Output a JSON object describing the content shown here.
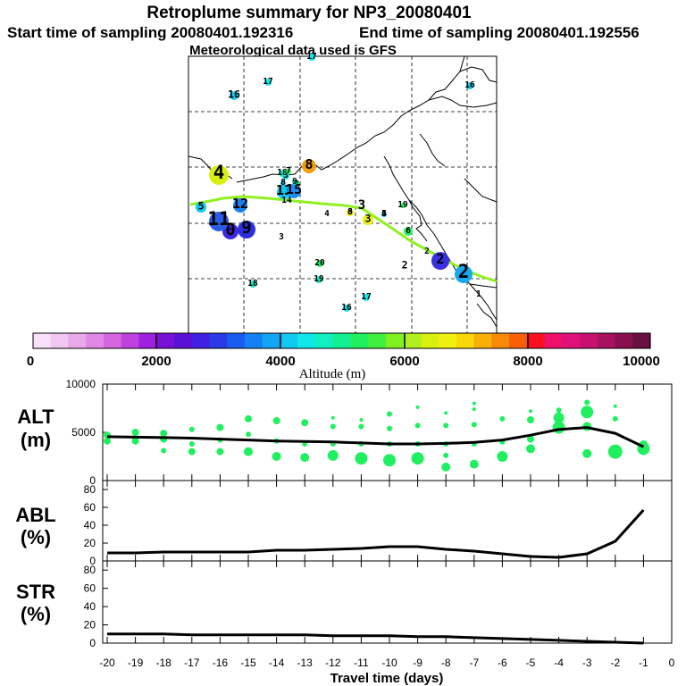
{
  "header": {
    "title": "Retroplume summary for NP3_20080401",
    "start_label": "Start time of sampling 20080401.192316",
    "end_label": "End time of sampling 20080401.192556",
    "met_label": "Meteorological data used is GFS"
  },
  "colorbar": {
    "ticks": [
      "0",
      "2000",
      "4000",
      "6000",
      "8000",
      "10000"
    ],
    "label": "Altitude (m)",
    "colors": [
      "#f9e1f9",
      "#f1c6f1",
      "#e9a9e9",
      "#e187e6",
      "#d566e0",
      "#c040e0",
      "#a020e0",
      "#7a10d8",
      "#5b10d8",
      "#3f20e0",
      "#2a3ae8",
      "#1a5cf0",
      "#1580f5",
      "#12a5f5",
      "#10c8f0",
      "#10e8e8",
      "#10f0c0",
      "#10f090",
      "#20f060",
      "#40f040",
      "#80f020",
      "#b0f020",
      "#d8f010",
      "#f0f010",
      "#f8d808",
      "#f8b008",
      "#f88a08",
      "#f86008",
      "#f81020",
      "#f0106a",
      "#e0107a",
      "#c81070",
      "#a81060",
      "#881050",
      "#681040"
    ]
  },
  "map": {
    "plumes": [
      {
        "label": "1",
        "color": "#b0f020"
      },
      {
        "label": "2",
        "color": "#18a8f0"
      },
      {
        "label": "2",
        "color": "#3a30e0"
      },
      {
        "label": "2",
        "color": "#d8f010"
      },
      {
        "label": "2",
        "color": "#f0f010"
      },
      {
        "label": "3",
        "color": "#f0f010"
      },
      {
        "label": "3",
        "color": "#d8f010"
      },
      {
        "label": "3",
        "color": "#10e8e8"
      },
      {
        "label": "4",
        "color": "#20f060"
      },
      {
        "label": "5",
        "color": "#10d0f0"
      },
      {
        "label": "6",
        "color": "#20f060"
      },
      {
        "label": "7",
        "color": "#40f040"
      },
      {
        "label": "8",
        "color": "#f0a010"
      },
      {
        "label": "9",
        "color": "#2a30e0"
      },
      {
        "label": "0",
        "color": "#4028e0"
      },
      {
        "label": "11",
        "color": "#2a5ce8"
      },
      {
        "label": "12",
        "color": "#1a80f0"
      },
      {
        "label": "13",
        "color": "#10c8f0"
      },
      {
        "label": "14",
        "color": "#20f060"
      },
      {
        "label": "15",
        "color": "#1a90f0"
      },
      {
        "label": "16",
        "color": "#10d0f0"
      },
      {
        "label": "17",
        "color": "#10e8e8"
      },
      {
        "label": "18",
        "color": "#10e8c0"
      },
      {
        "label": "19",
        "color": "#10e8c0"
      },
      {
        "label": "20",
        "color": "#20f060"
      },
      {
        "label": "4",
        "color": "#d8f010"
      },
      {
        "label": "5",
        "color": "#10c8f0"
      },
      {
        "label": "3",
        "color": "#f0f010"
      },
      {
        "label": "16",
        "color": "#10e0e8"
      },
      {
        "label": "16",
        "color": "#10c8f0"
      },
      {
        "label": "17",
        "color": "#10e8e8"
      },
      {
        "label": "17",
        "color": "#10e8e8"
      },
      {
        "label": "18",
        "color": "#10e8c0"
      },
      {
        "label": "19",
        "color": "#20f060"
      },
      {
        "label": "4",
        "color": "#10e8e8"
      },
      {
        "label": "6",
        "color": "#10d0f0"
      },
      {
        "label": "8",
        "color": "#10c8f0"
      },
      {
        "label": "9",
        "color": "#10e8c0"
      },
      {
        "label": "7",
        "color": "#20f060"
      }
    ],
    "path_labels": [
      "3"
    ]
  },
  "chart_data": [
    {
      "type": "scatter",
      "panel": "ALT",
      "ylabel": "ALT (m)",
      "ylim": [
        0,
        10000
      ],
      "yticks": [
        "10000",
        "5000",
        "0"
      ],
      "marker_color": "#20f060",
      "line": {
        "name": "mean altitude",
        "x": [
          -20,
          -19,
          -18,
          -17,
          -16,
          -15,
          -14,
          -13,
          -12,
          -11,
          -10,
          -9,
          -8,
          -7,
          -6,
          -5,
          -4,
          -3,
          -2,
          -1
        ],
        "y": [
          4550,
          4500,
          4450,
          4400,
          4300,
          4200,
          4100,
          4050,
          4000,
          3900,
          3800,
          3800,
          3850,
          3950,
          4200,
          4700,
          5300,
          5500,
          4900,
          3500
        ]
      },
      "points": [
        [
          -20,
          4100,
          4
        ],
        [
          -20,
          4700,
          4
        ],
        [
          -19,
          4100,
          4
        ],
        [
          -19,
          5000,
          4
        ],
        [
          -18,
          3100,
          3
        ],
        [
          -18,
          4300,
          4
        ],
        [
          -18,
          4900,
          4
        ],
        [
          -17,
          3000,
          4
        ],
        [
          -17,
          3800,
          3
        ],
        [
          -17,
          5300,
          3
        ],
        [
          -16,
          3000,
          4
        ],
        [
          -16,
          4200,
          3
        ],
        [
          -16,
          5500,
          4
        ],
        [
          -15,
          3000,
          5
        ],
        [
          -15,
          4800,
          3
        ],
        [
          -15,
          6400,
          4
        ],
        [
          -14,
          2500,
          5
        ],
        [
          -14,
          4100,
          3
        ],
        [
          -14,
          6200,
          4
        ],
        [
          -13,
          2400,
          5
        ],
        [
          -13,
          3800,
          3
        ],
        [
          -13,
          6000,
          4
        ],
        [
          -12,
          2600,
          6
        ],
        [
          -12,
          3800,
          3
        ],
        [
          -12,
          5600,
          3
        ],
        [
          -12,
          6500,
          2
        ],
        [
          -11,
          2300,
          7
        ],
        [
          -11,
          3800,
          3
        ],
        [
          -11,
          5600,
          3
        ],
        [
          -11,
          6300,
          2
        ],
        [
          -10,
          2100,
          7
        ],
        [
          -10,
          3800,
          3
        ],
        [
          -10,
          5400,
          3
        ],
        [
          -10,
          6900,
          3
        ],
        [
          -9,
          2300,
          7
        ],
        [
          -9,
          3800,
          3
        ],
        [
          -9,
          5700,
          3
        ],
        [
          -9,
          7600,
          2
        ],
        [
          -8,
          1400,
          5
        ],
        [
          -8,
          2600,
          3
        ],
        [
          -8,
          3800,
          3
        ],
        [
          -8,
          5700,
          3
        ],
        [
          -8,
          7000,
          2
        ],
        [
          -7,
          1700,
          5
        ],
        [
          -7,
          3800,
          3
        ],
        [
          -7,
          5800,
          3
        ],
        [
          -7,
          7400,
          2
        ],
        [
          -7,
          8000,
          2
        ],
        [
          -6,
          2500,
          6
        ],
        [
          -6,
          4000,
          3
        ],
        [
          -6,
          6400,
          3
        ],
        [
          -5,
          3300,
          5
        ],
        [
          -5,
          4300,
          4
        ],
        [
          -5,
          6300,
          4
        ],
        [
          -5,
          7200,
          2
        ],
        [
          -4,
          5500,
          7
        ],
        [
          -4,
          6500,
          6
        ],
        [
          -4,
          7300,
          3
        ],
        [
          -3,
          2800,
          5
        ],
        [
          -3,
          5600,
          5
        ],
        [
          -3,
          7100,
          7
        ],
        [
          -3,
          8100,
          3
        ],
        [
          -2,
          3000,
          8
        ],
        [
          -2,
          6400,
          3
        ],
        [
          -2,
          7700,
          2
        ],
        [
          -1,
          3300,
          7
        ],
        [
          -1,
          3700,
          5
        ]
      ]
    },
    {
      "type": "line",
      "panel": "ABL",
      "ylabel": "ABL (%)",
      "ylim": [
        0,
        90
      ],
      "yticks": [
        "80",
        "60",
        "40",
        "20",
        "0"
      ],
      "x": [
        -20,
        -19,
        -18,
        -17,
        -16,
        -15,
        -14,
        -13,
        -12,
        -11,
        -10,
        -9,
        -8,
        -7,
        -6,
        -5,
        -4,
        -3,
        -2,
        -1
      ],
      "y": [
        9,
        9,
        10,
        10,
        10,
        10,
        12,
        12,
        13,
        14,
        16,
        16,
        13,
        11,
        8,
        5,
        4,
        8,
        22,
        57
      ]
    },
    {
      "type": "line",
      "panel": "STR",
      "ylabel": "STR (%)",
      "ylim": [
        0,
        90
      ],
      "yticks": [
        "80",
        "60",
        "40",
        "20",
        "0"
      ],
      "x": [
        -20,
        -19,
        -18,
        -17,
        -16,
        -15,
        -14,
        -13,
        -12,
        -11,
        -10,
        -9,
        -8,
        -7,
        -6,
        -5,
        -4,
        -3,
        -2,
        -1
      ],
      "y": [
        10,
        10,
        10,
        9,
        9,
        9,
        9,
        9,
        8,
        8,
        8,
        7,
        7,
        6,
        5,
        4,
        3,
        2,
        1,
        0
      ],
      "xlabel": "Travel time (days)",
      "xticks": [
        "-20",
        "-19",
        "-18",
        "-17",
        "-16",
        "-15",
        "-14",
        "-13",
        "-12",
        "-11",
        "-10",
        "-9",
        "-8",
        "-7",
        "-6",
        "-5",
        "-4",
        "-3",
        "-2",
        "-1",
        "0"
      ]
    }
  ]
}
